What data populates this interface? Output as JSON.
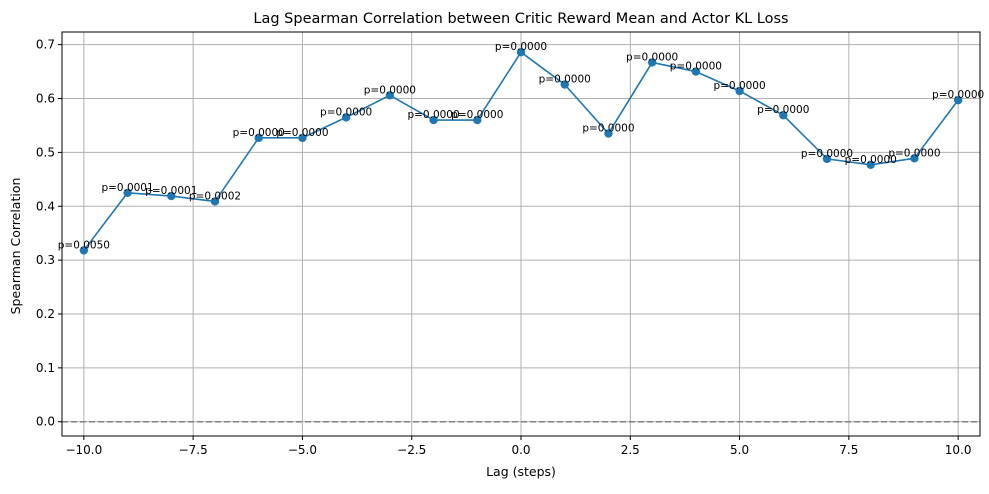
{
  "chart_data": {
    "type": "line",
    "title": "Lag Spearman Correlation between Critic Reward Mean and Actor KL Loss",
    "xlabel": "Lag (steps)",
    "ylabel": "Spearman Correlation",
    "xlim": [
      -10.5,
      10.5
    ],
    "ylim": [
      -0.0265,
      0.7235
    ],
    "grid": true,
    "x_ticks": [
      -10.0,
      -7.5,
      -5.0,
      -2.5,
      0.0,
      2.5,
      5.0,
      7.5,
      10.0
    ],
    "x_tick_labels": [
      "−10.0",
      "−7.5",
      "−5.0",
      "−2.5",
      "0.0",
      "2.5",
      "5.0",
      "7.5",
      "10.0"
    ],
    "y_ticks": [
      0.0,
      0.1,
      0.2,
      0.3,
      0.4,
      0.5,
      0.6,
      0.7
    ],
    "y_tick_labels": [
      "0.0",
      "0.1",
      "0.2",
      "0.3",
      "0.4",
      "0.5",
      "0.6",
      "0.7"
    ],
    "reference_line": {
      "y": 0.0,
      "style": "dashed",
      "color": "#808080"
    },
    "series": [
      {
        "color": "#1f77b4",
        "x": [
          -10,
          -9,
          -8,
          -7,
          -6,
          -5,
          -4,
          -3,
          -2,
          -1,
          0,
          1,
          2,
          3,
          4,
          5,
          6,
          7,
          8,
          9,
          10
        ],
        "y": [
          0.318,
          0.425,
          0.419,
          0.409,
          0.527,
          0.527,
          0.565,
          0.606,
          0.56,
          0.56,
          0.686,
          0.626,
          0.535,
          0.667,
          0.65,
          0.614,
          0.569,
          0.488,
          0.477,
          0.489,
          0.597
        ],
        "labels": [
          "p=0.0050",
          "p=0.0001",
          "p=0.0001",
          "p=0.0002",
          "p=0.0000",
          "p=0.0000",
          "p=0.0000",
          "p=0.0000",
          "p=0.0000",
          "p=0.0000",
          "p=0.0000",
          "p=0.0000",
          "p=0.0000",
          "p=0.0000",
          "p=0.0000",
          "p=0.0000",
          "p=0.0000",
          "p=0.0000",
          "p=0.0000",
          "p=0.0000",
          "p=0.0000"
        ]
      }
    ]
  }
}
